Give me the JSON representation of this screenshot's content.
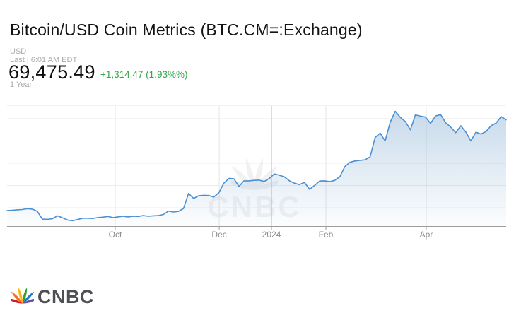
{
  "header": {
    "title": "Bitcoin/USD Coin Metrics (BTC.CM=:Exchange)",
    "currency": "USD",
    "last_timestamp": "Last | 6:01 AM EDT",
    "price": "69,475.49",
    "change": "+1,314.47 (1.93%%)",
    "range": "1 Year"
  },
  "watermark": {
    "text": "CNBC"
  },
  "footer": {
    "logo_text": "CNBC"
  },
  "colors": {
    "line": "#4a90d2",
    "fill_base": "#6f9ecb",
    "change_positive": "#2fa64a",
    "muted_text": "#ababab",
    "axis_text": "#8c8c8c",
    "axis_line": "#9c9c9c",
    "gridline": "#ededed",
    "gridline_vertical": "#e4e4e4",
    "gridline_year_emphasis": "#b8b8b8",
    "peacock_feathers": [
      "#cc1f2c",
      "#f36f21",
      "#fcb414",
      "#33a02c",
      "#1f78d1",
      "#6a51a3"
    ]
  },
  "chart_data": {
    "type": "area",
    "title": "Bitcoin/USD price, 1 Year",
    "unit": "USD",
    "legend": "none",
    "grid": "on",
    "x_range_approx": [
      "2023-07-29",
      "2024-05-18"
    ],
    "x_ticks": [
      {
        "label": "Oct",
        "pos": 0.2167,
        "emphasis": false
      },
      {
        "label": "Dec",
        "pos": 0.425,
        "emphasis": false
      },
      {
        "label": "2024",
        "pos": 0.5297,
        "emphasis": true
      },
      {
        "label": "Feb",
        "pos": 0.6388,
        "emphasis": false
      },
      {
        "label": "Apr",
        "pos": 0.84,
        "emphasis": false
      }
    ],
    "y_axis": {
      "min": 21600,
      "max": 76000,
      "gridlines": [
        30000,
        40000,
        50000,
        60000,
        70000
      ],
      "labels_visible": false
    },
    "last_value": 69475.49,
    "values": [
      28700,
      28900,
      29100,
      29200,
      29600,
      29400,
      28400,
      24900,
      24800,
      25100,
      26400,
      25500,
      24500,
      24200,
      24700,
      25300,
      25300,
      25200,
      25600,
      25800,
      26100,
      25600,
      25900,
      26200,
      25900,
      26200,
      26100,
      26500,
      26200,
      26400,
      26500,
      27000,
      28500,
      28100,
      28400,
      29700,
      36400,
      34200,
      35400,
      35600,
      35500,
      34800,
      36700,
      41000,
      43200,
      43000,
      39600,
      42100,
      42100,
      42300,
      42400,
      41800,
      43100,
      45200,
      44600,
      43900,
      42100,
      41000,
      40400,
      41400,
      38300,
      40000,
      42000,
      42100,
      41700,
      42300,
      43900,
      48500,
      50400,
      51000,
      51300,
      51500,
      52800,
      61500,
      63500,
      60000,
      68400,
      73300,
      70600,
      68700,
      65000,
      71700,
      71100,
      70700,
      67900,
      71200,
      71800,
      68200,
      66200,
      63700,
      66800,
      64000,
      60000,
      63900,
      63100,
      64200,
      66800,
      68000,
      70900,
      69475
    ]
  }
}
